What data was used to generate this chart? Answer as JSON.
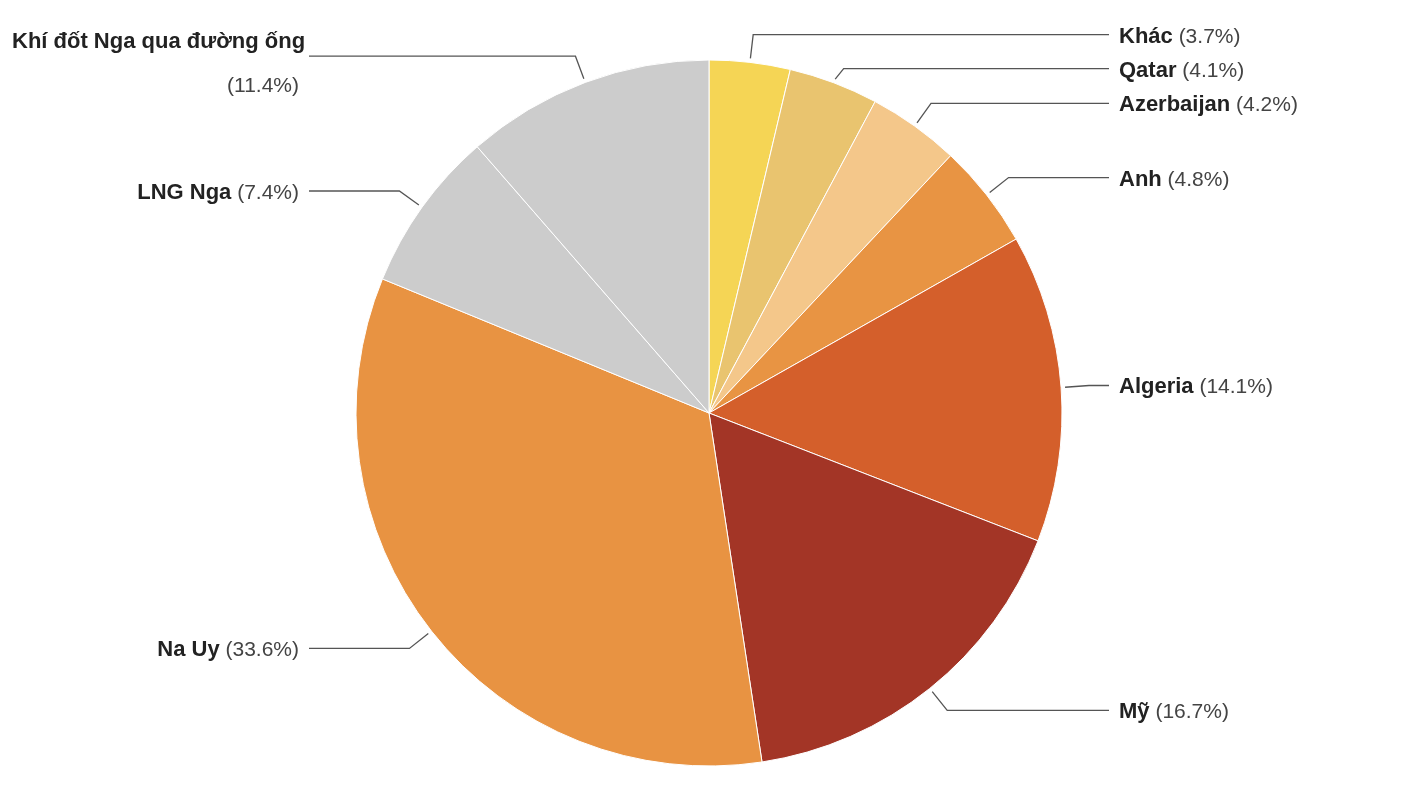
{
  "chart_data": {
    "type": "pie",
    "categories": [
      "Khác",
      "Qatar",
      "Azerbaijan",
      "Anh",
      "Algeria",
      "Mỹ",
      "Na Uy",
      "LNG Nga",
      "Khí đốt Nga qua đường ống"
    ],
    "values": [
      3.7,
      4.1,
      4.2,
      4.8,
      14.1,
      16.7,
      33.6,
      7.4,
      11.4
    ],
    "colors": [
      "#f5d555",
      "#e9c46f",
      "#f4c78a",
      "#e89443",
      "#d45f2b",
      "#a33526",
      "#e89342",
      "#cccccc",
      "#cccccc"
    ],
    "value_labels": [
      "(3.7%)",
      "(4.1%)",
      "(4.2%)",
      "(4.8%)",
      "(14.1%)",
      "(16.7%)",
      "(33.6%)",
      "(7.4%)",
      "(11.4%)"
    ]
  }
}
